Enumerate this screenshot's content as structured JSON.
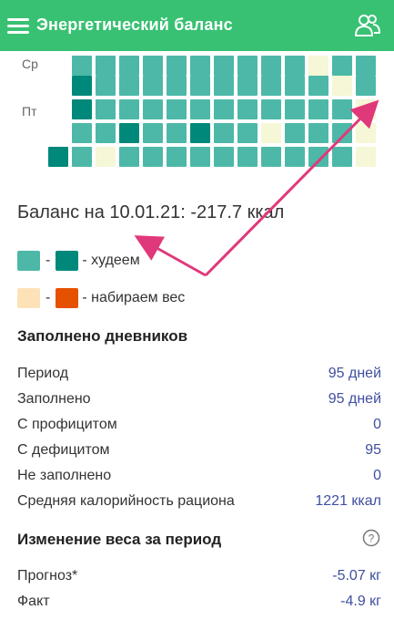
{
  "appbar": {
    "title": "Энергетический баланс",
    "menu_icon": "menu-icon",
    "people_icon": "people-icon"
  },
  "colors": {
    "accent": "#38c172",
    "losing_light": "#4db8a8",
    "losing_dark": "#00897b",
    "gaining_light": "#fde2b8",
    "gaining_dark": "#e65100",
    "neutral": "#f5f7d6",
    "arrow": "#e0397a"
  },
  "calendar": {
    "day_labels": [
      "Ср",
      "Пт"
    ],
    "rows": [
      [
        "L",
        "L",
        "L",
        "L",
        "L",
        "L",
        "L",
        "L",
        "L",
        "L",
        "N",
        "L",
        "L"
      ],
      [
        "D",
        "L",
        "L",
        "L",
        "L",
        "L",
        "L",
        "L",
        "L",
        "L",
        "L",
        "N",
        "L"
      ],
      [
        "D",
        "L",
        "L",
        "L",
        "L",
        "L",
        "L",
        "L",
        "L",
        "L",
        "L",
        "L",
        "N"
      ],
      [
        "L",
        "L",
        "D",
        "L",
        "L",
        "D",
        "L",
        "L",
        "N",
        "L",
        "L",
        "L",
        "N"
      ],
      [
        "D",
        "L",
        "N",
        "L",
        "L",
        "L",
        "L",
        "L",
        "L",
        "L",
        "L",
        "L",
        "L",
        "N"
      ]
    ]
  },
  "balance": {
    "text": "Баланс на 10.01.21: -217.7 ккал"
  },
  "legend": {
    "dash": "-",
    "losing_label": "- худеем",
    "gaining_label": "- набираем вес"
  },
  "diaries": {
    "title": "Заполнено дневников",
    "rows": [
      {
        "label": "Период",
        "value": "95 дней"
      },
      {
        "label": "Заполнено",
        "value": "95 дней"
      },
      {
        "label": "С профицитом",
        "value": "0"
      },
      {
        "label": "С дефицитом",
        "value": "95"
      },
      {
        "label": "Не заполнено",
        "value": "0"
      },
      {
        "label": "Средняя калорийность рациона",
        "value": "1221 ккал"
      }
    ]
  },
  "weight": {
    "title": "Изменение веса за период",
    "help_icon": "help-icon",
    "rows": [
      {
        "label": "Прогноз*",
        "value": "-5.07 кг"
      },
      {
        "label": "Факт",
        "value": "-4.9 кг"
      }
    ]
  }
}
